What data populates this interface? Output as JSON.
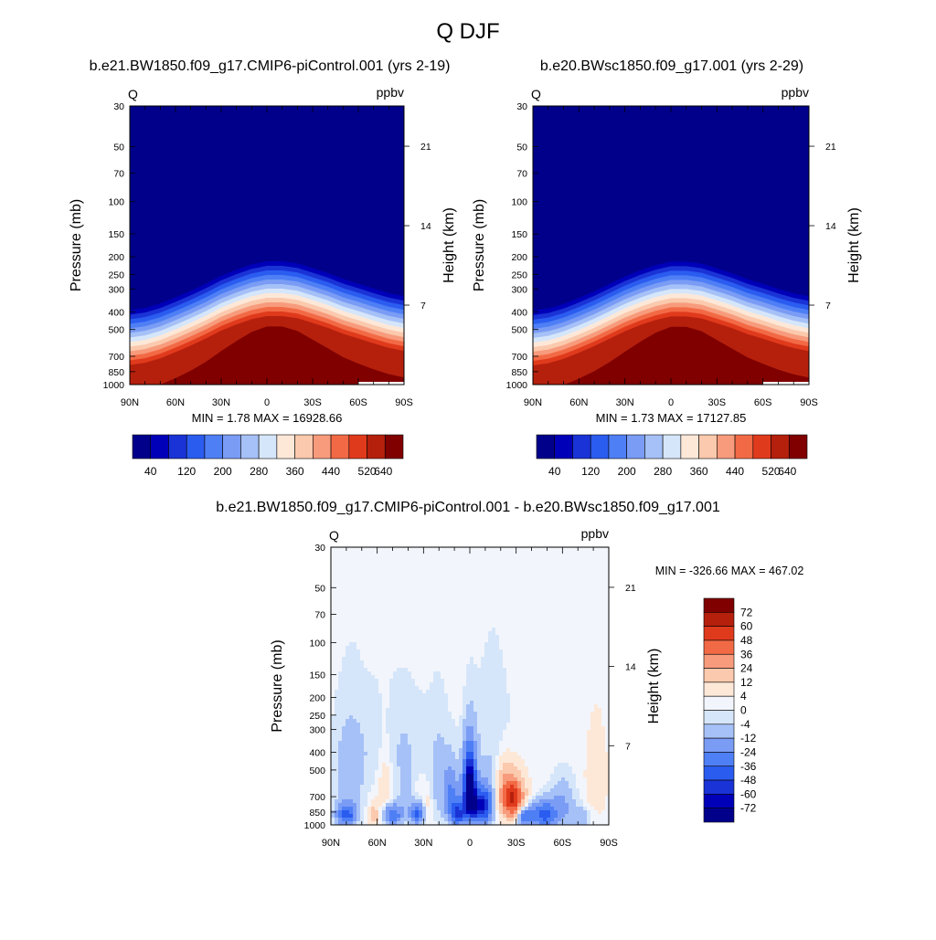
{
  "page_title": "Q DJF",
  "colormap_abs": [
    "#00008b",
    "#0000b8",
    "#1a33d6",
    "#2b5cf0",
    "#4f7ff5",
    "#7a9cf5",
    "#a6c1f7",
    "#d6e6fa",
    "#fde8d8",
    "#fbc9ad",
    "#f79b7c",
    "#f26a45",
    "#e03a1c",
    "#b5200d",
    "#800000"
  ],
  "colormap_diff": [
    "#00008b",
    "#0000b8",
    "#1a33d6",
    "#2b5cf0",
    "#4f7ff5",
    "#7a9cf5",
    "#a6c1f7",
    "#d6e6fa",
    "#f2f5fb",
    "#fde8d8",
    "#fbc9ad",
    "#f79b7c",
    "#f26a45",
    "#e03a1c",
    "#b5200d",
    "#800000"
  ],
  "chart_data": [
    {
      "type": "contour",
      "title": "b.e21.BW1850.f09_g17.CMIP6-piControl.001 (yrs 2-19)",
      "variable": "Q",
      "units": "ppbv",
      "ylabel": "Pressure (mb)",
      "ylabel_right": "Height (km)",
      "x_ticks": [
        "90N",
        "60N",
        "30N",
        "0",
        "30S",
        "60S",
        "90S"
      ],
      "x_values": [
        90,
        60,
        30,
        0,
        -30,
        -60,
        -90
      ],
      "y_ticks": [
        30,
        50,
        70,
        100,
        150,
        200,
        250,
        300,
        400,
        500,
        700,
        850,
        1000
      ],
      "height_ticks": [
        21,
        14,
        7
      ],
      "ylim": [
        1000,
        30
      ],
      "stats": "MIN =   1.78  MAX = 16928.66",
      "colorbar_labels": [
        "40",
        "120",
        "200",
        "280",
        "360",
        "440",
        "520",
        "640"
      ],
      "tropopause_mb": [
        [
          90,
          370
        ],
        [
          80,
          360
        ],
        [
          70,
          340
        ],
        [
          60,
          315
        ],
        [
          50,
          290
        ],
        [
          40,
          265
        ],
        [
          30,
          240
        ],
        [
          20,
          222
        ],
        [
          10,
          208
        ],
        [
          0,
          200
        ],
        [
          -10,
          200
        ],
        [
          -20,
          205
        ],
        [
          -30,
          218
        ],
        [
          -40,
          232
        ],
        [
          -50,
          250
        ],
        [
          -60,
          265
        ],
        [
          -70,
          282
        ],
        [
          -80,
          298
        ],
        [
          -90,
          310
        ]
      ]
    },
    {
      "type": "contour",
      "title": "b.e20.BWsc1850.f09_g17.001 (yrs 2-29)",
      "variable": "Q",
      "units": "ppbv",
      "ylabel": "Pressure (mb)",
      "ylabel_right": "Height (km)",
      "x_ticks": [
        "90N",
        "60N",
        "30N",
        "0",
        "30S",
        "60S",
        "90S"
      ],
      "x_values": [
        90,
        60,
        30,
        0,
        -30,
        -60,
        -90
      ],
      "y_ticks": [
        30,
        50,
        70,
        100,
        150,
        200,
        250,
        300,
        400,
        500,
        700,
        850,
        1000
      ],
      "height_ticks": [
        21,
        14,
        7
      ],
      "ylim": [
        1000,
        30
      ],
      "stats": "MIN =   1.73  MAX = 17127.85",
      "colorbar_labels": [
        "40",
        "120",
        "200",
        "280",
        "360",
        "440",
        "520",
        "640"
      ],
      "tropopause_mb": [
        [
          90,
          372
        ],
        [
          80,
          362
        ],
        [
          70,
          342
        ],
        [
          60,
          317
        ],
        [
          50,
          292
        ],
        [
          40,
          266
        ],
        [
          30,
          242
        ],
        [
          20,
          224
        ],
        [
          10,
          210
        ],
        [
          0,
          201
        ],
        [
          -10,
          201
        ],
        [
          -20,
          206
        ],
        [
          -30,
          219
        ],
        [
          -40,
          233
        ],
        [
          -50,
          251
        ],
        [
          -60,
          266
        ],
        [
          -70,
          283
        ],
        [
          -80,
          299
        ],
        [
          -90,
          311
        ]
      ]
    },
    {
      "type": "contour",
      "title": "b.e21.BW1850.f09_g17.CMIP6-piControl.001 - b.e20.BWsc1850.f09_g17.001",
      "variable": "Q",
      "units": "ppbv",
      "ylabel": "Pressure (mb)",
      "ylabel_right": "Height (km)",
      "x_ticks": [
        "90N",
        "60N",
        "30N",
        "0",
        "30S",
        "60S",
        "90S"
      ],
      "x_values": [
        90,
        60,
        30,
        0,
        -30,
        -60,
        -90
      ],
      "y_ticks": [
        30,
        50,
        70,
        100,
        150,
        200,
        250,
        300,
        400,
        500,
        700,
        850,
        1000
      ],
      "height_ticks": [
        21,
        14,
        7
      ],
      "ylim": [
        1000,
        30
      ],
      "stats": "MIN = -326.66  MAX = 467.02",
      "colorbar_labels": [
        "72",
        "60",
        "48",
        "36",
        "24",
        "12",
        "4",
        "0",
        "-4",
        "-12",
        "-24",
        "-36",
        "-48",
        "-60",
        "-72"
      ],
      "features": [
        {
          "lat": 0,
          "p": 580,
          "v": -80,
          "wlat": 4,
          "wp": 220
        },
        {
          "lat": -2,
          "p": 800,
          "v": -60,
          "wlat": 7,
          "wp": 160
        },
        {
          "lat": -10,
          "p": 780,
          "v": -45,
          "wlat": 5,
          "wp": 170
        },
        {
          "lat": -28,
          "p": 720,
          "v": 60,
          "wlat": 7,
          "wp": 190
        },
        {
          "lat": -22,
          "p": 600,
          "v": 15,
          "wlat": 5,
          "wp": 200
        },
        {
          "lat": -35,
          "p": 900,
          "v": -40,
          "wlat": 5,
          "wp": 110
        },
        {
          "lat": -48,
          "p": 880,
          "v": -45,
          "wlat": 8,
          "wp": 140
        },
        {
          "lat": -60,
          "p": 780,
          "v": -15,
          "wlat": 8,
          "wp": 230
        },
        {
          "lat": -82,
          "p": 550,
          "v": 10,
          "wlat": 6,
          "wp": 260
        },
        {
          "lat": -72,
          "p": 910,
          "v": -12,
          "wlat": 6,
          "wp": 110
        },
        {
          "lat": 12,
          "p": 700,
          "v": -28,
          "wlat": 5,
          "wp": 230
        },
        {
          "lat": 8,
          "p": 880,
          "v": -45,
          "wlat": 4,
          "wp": 110
        },
        {
          "lat": 20,
          "p": 580,
          "v": -8,
          "wlat": 6,
          "wp": 320
        },
        {
          "lat": 34,
          "p": 870,
          "v": -40,
          "wlat": 5,
          "wp": 110
        },
        {
          "lat": 42,
          "p": 650,
          "v": -8,
          "wlat": 5,
          "wp": 260
        },
        {
          "lat": 28,
          "p": 800,
          "v": 8,
          "wlat": 3,
          "wp": 150
        },
        {
          "lat": 50,
          "p": 880,
          "v": -38,
          "wlat": 6,
          "wp": 110
        },
        {
          "lat": 55,
          "p": 620,
          "v": 8,
          "wlat": 4,
          "wp": 330
        },
        {
          "lat": 62,
          "p": 880,
          "v": 18,
          "wlat": 3,
          "wp": 120
        },
        {
          "lat": 78,
          "p": 560,
          "v": -10,
          "wlat": 10,
          "wp": 330
        },
        {
          "lat": 80,
          "p": 880,
          "v": -45,
          "wlat": 6,
          "wp": 110
        },
        {
          "lat": -15,
          "p": 420,
          "v": -6,
          "wlat": 14,
          "wp": 320
        },
        {
          "lat": 50,
          "p": 350,
          "v": -5,
          "wlat": 30,
          "wp": 220
        }
      ]
    }
  ]
}
